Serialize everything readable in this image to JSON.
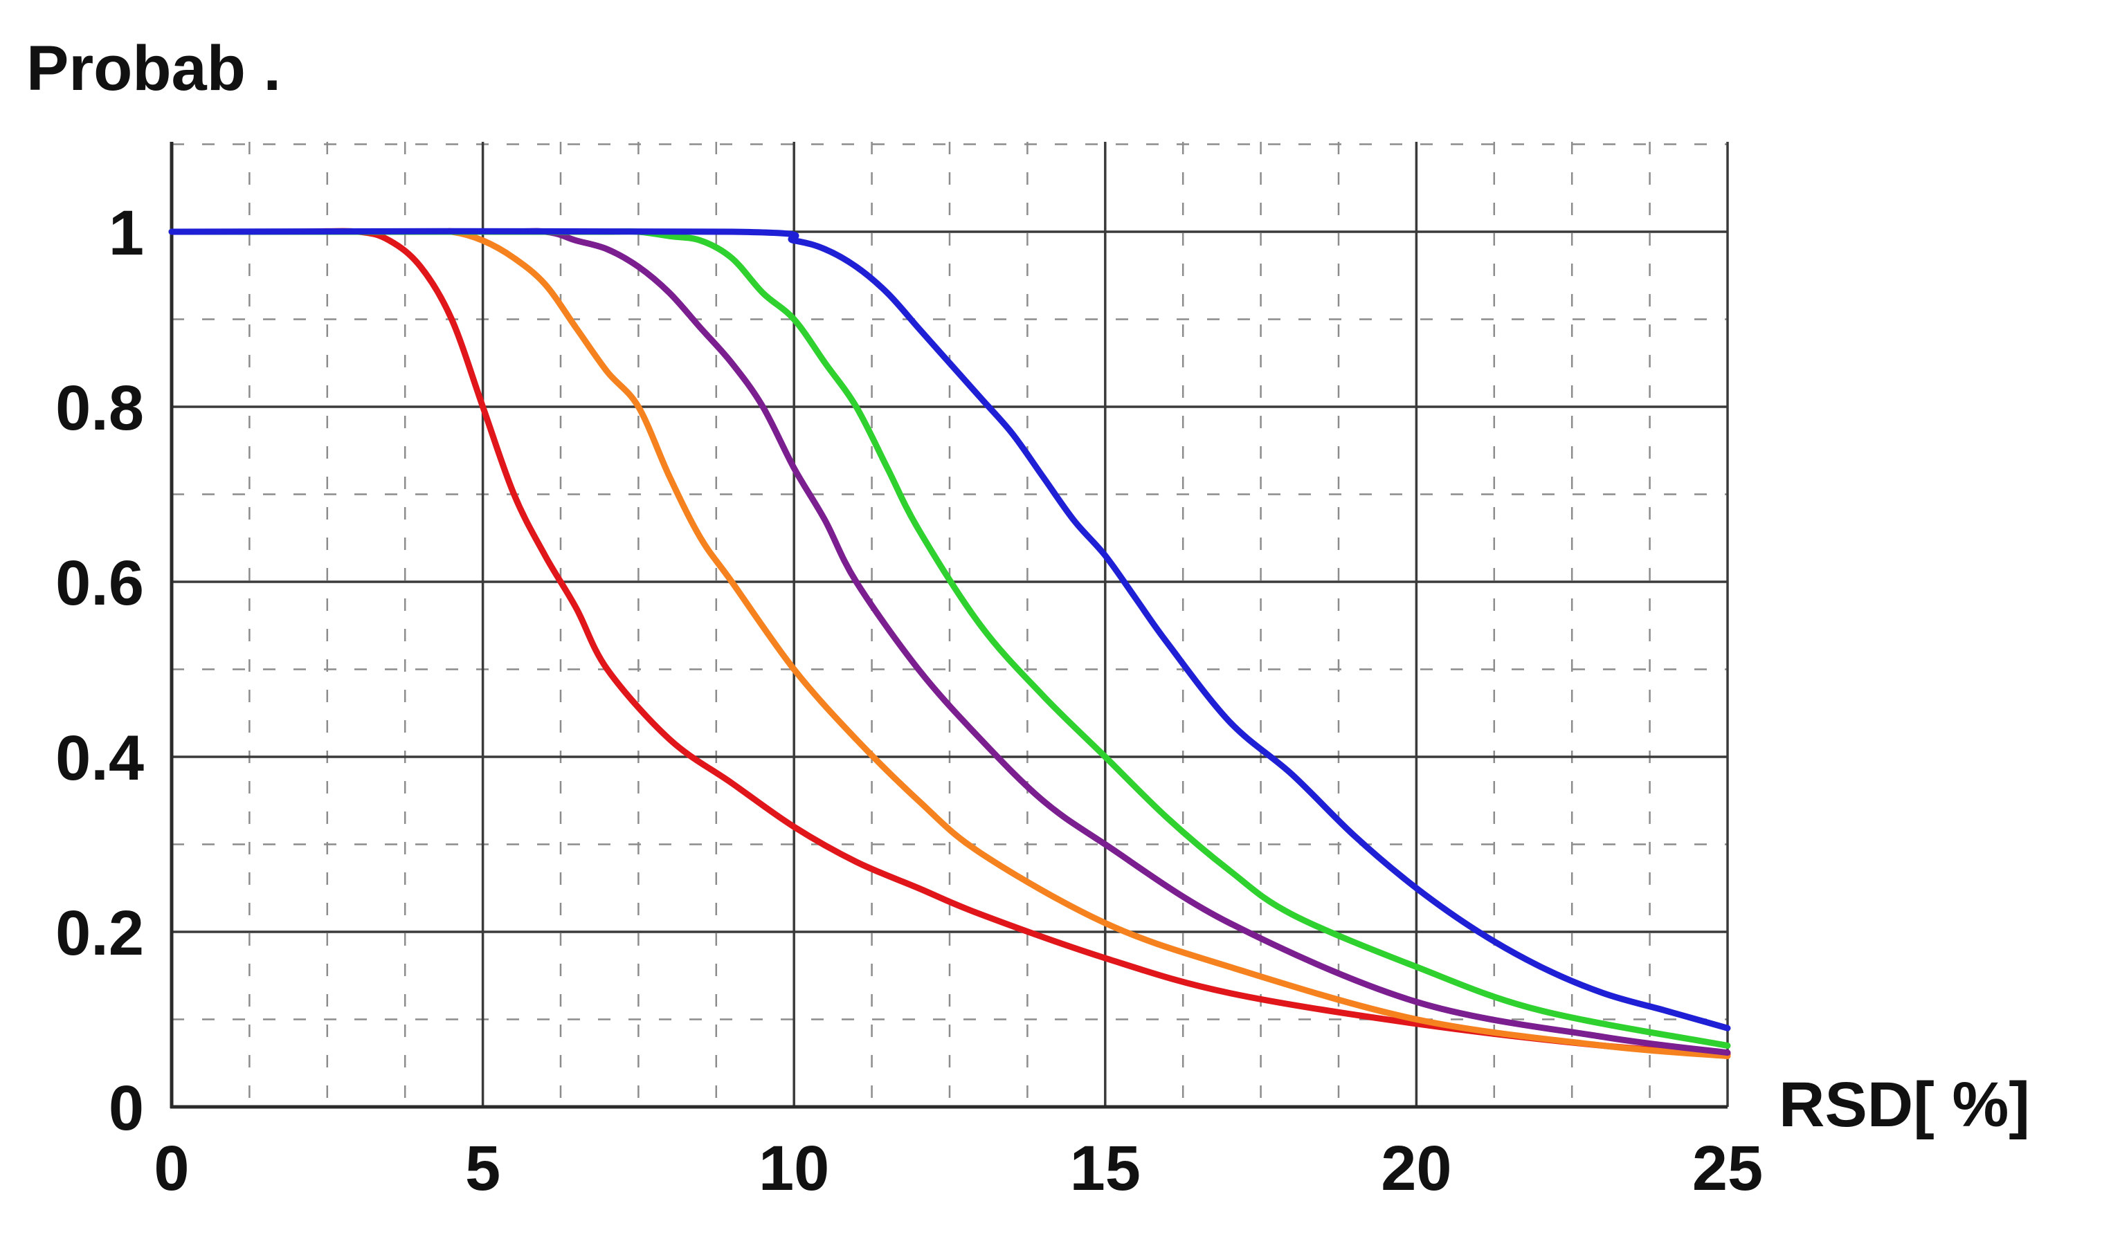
{
  "chart_data": {
    "type": "line",
    "ylabel": "Probab .",
    "xlabel": "RSD[ %]",
    "xlim": [
      0,
      25
    ],
    "ylim": [
      0,
      1
    ],
    "x_ticks": [
      {
        "value": 0,
        "label": "0"
      },
      {
        "value": 5,
        "label": "5"
      },
      {
        "value": 10,
        "label": "10"
      },
      {
        "value": 15,
        "label": "15"
      },
      {
        "value": 20,
        "label": "20"
      },
      {
        "value": 25,
        "label": "25"
      }
    ],
    "y_ticks": [
      {
        "value": 0,
        "label": "0"
      },
      {
        "value": 0.2,
        "label": "0.2"
      },
      {
        "value": 0.4,
        "label": "0.4"
      },
      {
        "value": 0.6,
        "label": "0.6"
      },
      {
        "value": 0.8,
        "label": "0.8"
      },
      {
        "value": 1,
        "label": "1"
      }
    ],
    "grid": {
      "major": true,
      "minor_dashed": true
    },
    "series": [
      {
        "color": "#e0161b",
        "x": [
          0,
          2,
          3,
          3.5,
          4,
          4.5,
          5,
          5.5,
          6,
          6.5,
          7,
          8,
          9,
          10,
          11,
          12,
          13,
          15,
          17,
          20,
          23,
          25
        ],
        "y": [
          1,
          1,
          1,
          0.99,
          0.96,
          0.9,
          0.8,
          0.7,
          0.63,
          0.57,
          0.5,
          0.42,
          0.37,
          0.32,
          0.28,
          0.25,
          0.22,
          0.17,
          0.13,
          0.095,
          0.07,
          0.06
        ]
      },
      {
        "color": "#f5821f",
        "x": [
          0,
          4,
          4.5,
          5,
          5.5,
          6,
          6.5,
          7,
          7.5,
          8,
          8.5,
          9,
          10,
          11,
          12,
          13,
          15,
          17,
          20,
          23,
          25
        ],
        "y": [
          1,
          1,
          1,
          0.99,
          0.97,
          0.94,
          0.89,
          0.84,
          0.8,
          0.72,
          0.65,
          0.6,
          0.5,
          0.42,
          0.35,
          0.29,
          0.21,
          0.16,
          0.1,
          0.07,
          0.058
        ]
      },
      {
        "color": "#7b1e8f",
        "x": [
          0,
          5,
          6,
          6.5,
          7,
          7.5,
          8,
          8.5,
          9,
          9.5,
          10,
          10.5,
          11,
          12,
          13,
          14,
          15,
          17,
          20,
          23,
          25
        ],
        "y": [
          1,
          1,
          1,
          0.99,
          0.98,
          0.96,
          0.93,
          0.89,
          0.85,
          0.8,
          0.73,
          0.67,
          0.6,
          0.5,
          0.42,
          0.35,
          0.3,
          0.21,
          0.12,
          0.08,
          0.062
        ]
      },
      {
        "color": "#2ed12e",
        "x": [
          0,
          6,
          7,
          7.5,
          8,
          8.5,
          9,
          9.5,
          10,
          10.5,
          11,
          11.5,
          12,
          13,
          14,
          15,
          16,
          17,
          18,
          20,
          22,
          25
        ],
        "y": [
          1,
          1,
          1,
          1,
          0.995,
          0.99,
          0.97,
          0.93,
          0.9,
          0.85,
          0.8,
          0.73,
          0.66,
          0.55,
          0.47,
          0.4,
          0.33,
          0.27,
          0.22,
          0.16,
          0.11,
          0.07
        ]
      },
      {
        "color": "#1f1fd6",
        "x": [
          0,
          9,
          10,
          10.5,
          11,
          11.5,
          12,
          12.5,
          13,
          13.5,
          14,
          14.5,
          15,
          15.5,
          16,
          17,
          18,
          19,
          20,
          21,
          22,
          23,
          24,
          25
        ],
        "y": [
          1,
          1,
          0.99,
          0.98,
          0.96,
          0.93,
          0.89,
          0.85,
          0.81,
          0.77,
          0.72,
          0.67,
          0.63,
          0.58,
          0.53,
          0.44,
          0.38,
          0.31,
          0.25,
          0.2,
          0.16,
          0.13,
          0.11,
          0.09
        ]
      }
    ]
  }
}
